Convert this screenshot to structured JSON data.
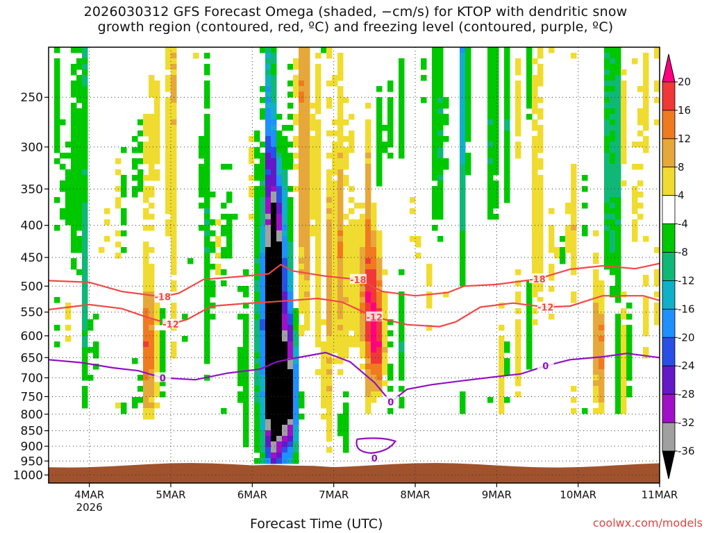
{
  "chart_data": {
    "type": "heatmap",
    "title_lines": [
      "2026030312 GFS Forecast Omega (shaded, −cm/s) for KTOP with dendritic snow",
      "growth region (contoured, red, ºC) and freezing level (contoured, purple, ºC)"
    ],
    "xlabel": "Forecast Time (UTC)",
    "credit": "coolwx.com/models",
    "y_ticks": [
      "250",
      "300",
      "350",
      "400",
      "450",
      "500",
      "550",
      "600",
      "650",
      "700",
      "750",
      "800",
      "850",
      "900",
      "950",
      "1000"
    ],
    "x_ticks": [
      {
        "label": "4MAR",
        "sub": "2026"
      },
      {
        "label": "5MAR",
        "sub": ""
      },
      {
        "label": "6MAR",
        "sub": ""
      },
      {
        "label": "7MAR",
        "sub": ""
      },
      {
        "label": "8MAR",
        "sub": ""
      },
      {
        "label": "9MAR",
        "sub": ""
      },
      {
        "label": "10MAR",
        "sub": ""
      },
      {
        "label": "11MAR",
        "sub": ""
      }
    ],
    "colorbar": {
      "levels": [
        "20",
        "16",
        "12",
        "8",
        "4",
        "-4",
        "-8",
        "-12",
        "-16",
        "-20",
        "-24",
        "-28",
        "-32",
        "-36"
      ],
      "colors": [
        "#ff0080",
        "#f03838",
        "#f07a20",
        "#e6a83a",
        "#f0dc30",
        "#ffffff",
        "#00c800",
        "#10b878",
        "#10b0c8",
        "#1e90ff",
        "#2850e6",
        "#6418c8",
        "#a010c8",
        "#a0a0a0",
        "#000000"
      ]
    },
    "contours": [
      {
        "name": "dgz-minus18",
        "color": "#f04848",
        "label": "-18",
        "points": [
          [
            3.5,
            490
          ],
          [
            4,
            493
          ],
          [
            4.4,
            510
          ],
          [
            4.6,
            514
          ],
          [
            4.9,
            520
          ],
          [
            5.1,
            513
          ],
          [
            5.4,
            488
          ],
          [
            5.9,
            482
          ],
          [
            6.2,
            478
          ],
          [
            6.35,
            462
          ],
          [
            6.5,
            473
          ],
          [
            6.9,
            482
          ],
          [
            7.3,
            488
          ],
          [
            7.6,
            510
          ],
          [
            8.0,
            518
          ],
          [
            8.4,
            512
          ],
          [
            8.6,
            500
          ],
          [
            9.0,
            497
          ],
          [
            9.5,
            487
          ],
          [
            9.9,
            470
          ],
          [
            10.3,
            464
          ],
          [
            10.7,
            469
          ],
          [
            11.0,
            460
          ]
        ]
      },
      {
        "name": "dgz-minus12",
        "color": "#f04848",
        "label": "-12",
        "points": [
          [
            3.5,
            545
          ],
          [
            4,
            535
          ],
          [
            4.4,
            543
          ],
          [
            4.7,
            560
          ],
          [
            5.0,
            575
          ],
          [
            5.2,
            565
          ],
          [
            5.5,
            538
          ],
          [
            5.9,
            533
          ],
          [
            6.2,
            530
          ],
          [
            6.4,
            528
          ],
          [
            6.8,
            523
          ],
          [
            7.1,
            530
          ],
          [
            7.5,
            560
          ],
          [
            7.9,
            576
          ],
          [
            8.3,
            580
          ],
          [
            8.5,
            570
          ],
          [
            8.8,
            540
          ],
          [
            9.2,
            532
          ],
          [
            9.6,
            540
          ],
          [
            9.9,
            538
          ],
          [
            10.3,
            518
          ],
          [
            10.8,
            518
          ],
          [
            11.0,
            527
          ]
        ]
      },
      {
        "name": "freezing-level",
        "color": "#9010c0",
        "label": "0",
        "points": [
          [
            3.5,
            655
          ],
          [
            3.9,
            662
          ],
          [
            4.3,
            675
          ],
          [
            4.6,
            682
          ],
          [
            4.9,
            700
          ],
          [
            5.3,
            705
          ],
          [
            5.7,
            688
          ],
          [
            6.1,
            678
          ],
          [
            6.3,
            660
          ],
          [
            6.5,
            652
          ],
          [
            6.9,
            638
          ],
          [
            7.2,
            660
          ],
          [
            7.5,
            712
          ],
          [
            7.7,
            765
          ],
          [
            7.9,
            730
          ],
          [
            8.2,
            718
          ],
          [
            8.6,
            707
          ],
          [
            9.0,
            697
          ],
          [
            9.3,
            690
          ],
          [
            9.6,
            670
          ],
          [
            9.9,
            655
          ],
          [
            10.3,
            648
          ],
          [
            10.6,
            640
          ],
          [
            11.0,
            650
          ]
        ]
      }
    ],
    "freezing_loop_label": "0",
    "omega_blobs": [
      {
        "t": 6.27,
        "p": 620,
        "w": 0.1,
        "h": 300,
        "v": -40
      },
      {
        "t": 6.27,
        "p": 610,
        "w": 0.16,
        "h": 330,
        "v": -24
      },
      {
        "t": 6.45,
        "p": 760,
        "w": 0.1,
        "h": 180,
        "v": -28
      },
      {
        "t": 6.3,
        "p": 640,
        "w": 0.26,
        "h": 360,
        "v": -10
      },
      {
        "t": 7.45,
        "p": 520,
        "w": 0.14,
        "h": 140,
        "v": 18
      },
      {
        "t": 7.55,
        "p": 650,
        "w": 0.08,
        "h": 120,
        "v": 20
      },
      {
        "t": 7.1,
        "p": 460,
        "w": 0.18,
        "h": 260,
        "v": 9
      },
      {
        "t": 6.65,
        "p": 350,
        "w": 0.18,
        "h": 220,
        "v": 10
      },
      {
        "t": 6.3,
        "p": 260,
        "w": 0.06,
        "h": 140,
        "v": 12
      },
      {
        "t": 4.72,
        "p": 610,
        "w": 0.06,
        "h": 160,
        "v": 14
      },
      {
        "t": 10.25,
        "p": 600,
        "w": 0.07,
        "h": 140,
        "v": 12
      },
      {
        "t": 10.4,
        "p": 320,
        "w": 0.1,
        "h": 200,
        "v": -12
      },
      {
        "t": 10.7,
        "p": 300,
        "w": 0.1,
        "h": 260,
        "v": 6
      },
      {
        "t": 3.8,
        "p": 300,
        "w": 0.2,
        "h": 260,
        "v": -7
      },
      {
        "t": 4.0,
        "p": 600,
        "w": 0.14,
        "h": 240,
        "v": -6
      },
      {
        "t": 5.4,
        "p": 420,
        "w": 0.12,
        "h": 300,
        "v": -7
      },
      {
        "t": 5.0,
        "p": 300,
        "w": 0.12,
        "h": 200,
        "v": 6
      },
      {
        "t": 8.3,
        "p": 280,
        "w": 0.12,
        "h": 160,
        "v": -8
      },
      {
        "t": 9.0,
        "p": 250,
        "w": 0.14,
        "h": 160,
        "v": -7
      },
      {
        "t": 8.0,
        "p": 440,
        "w": 0.1,
        "h": 180,
        "v": 5
      },
      {
        "t": 9.5,
        "p": 380,
        "w": 0.12,
        "h": 160,
        "v": 6
      },
      {
        "t": 7.1,
        "p": 820,
        "w": 0.08,
        "h": 120,
        "v": -8
      },
      {
        "t": 6.9,
        "p": 700,
        "w": 0.1,
        "h": 260,
        "v": 6
      },
      {
        "t": 5.9,
        "p": 700,
        "w": 0.06,
        "h": 240,
        "v": -6
      },
      {
        "t": 8.6,
        "p": 230,
        "w": 0.06,
        "h": 120,
        "v": -14
      }
    ]
  }
}
